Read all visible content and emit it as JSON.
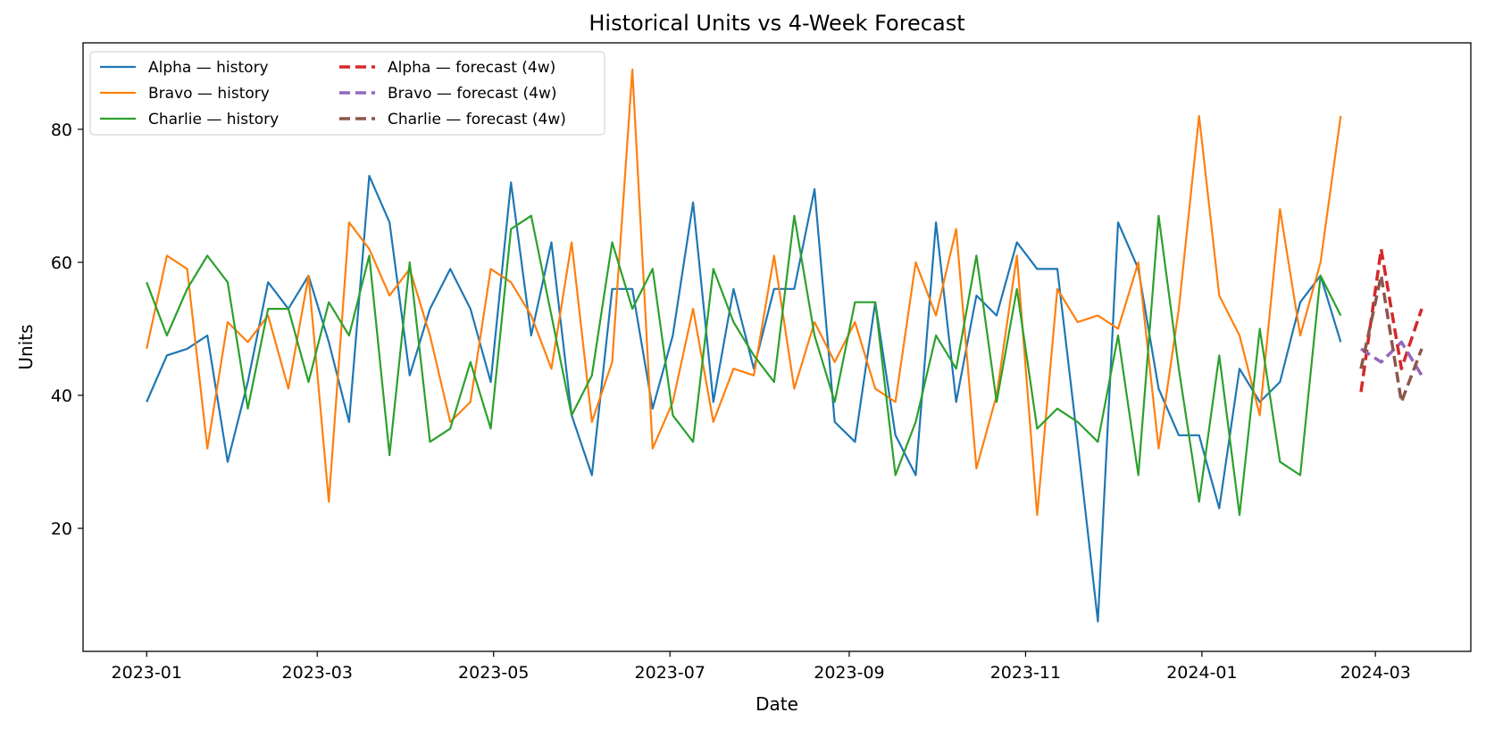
{
  "chart_data": {
    "type": "line",
    "title": "Historical Units vs 4-Week Forecast",
    "xlabel": "Date",
    "ylabel": "Units",
    "x_range": [
      "2022-12-10",
      "2024-04-03"
    ],
    "ylim": [
      1.5,
      93
    ],
    "y_ticks": [
      20,
      40,
      60,
      80
    ],
    "x_ticks": [
      {
        "date": "2023-01-01",
        "label": "2023-01"
      },
      {
        "date": "2023-03-01",
        "label": "2023-03"
      },
      {
        "date": "2023-05-01",
        "label": "2023-05"
      },
      {
        "date": "2023-07-01",
        "label": "2023-07"
      },
      {
        "date": "2023-09-01",
        "label": "2023-09"
      },
      {
        "date": "2023-11-01",
        "label": "2023-11"
      },
      {
        "date": "2024-01-01",
        "label": "2024-01"
      },
      {
        "date": "2024-03-01",
        "label": "2024-03"
      }
    ],
    "grid": false,
    "legend_placement": "top-left",
    "history_dates": [
      "2023-01-01",
      "2023-01-08",
      "2023-01-15",
      "2023-01-22",
      "2023-01-29",
      "2023-02-05",
      "2023-02-12",
      "2023-02-19",
      "2023-02-26",
      "2023-03-05",
      "2023-03-12",
      "2023-03-19",
      "2023-03-26",
      "2023-04-02",
      "2023-04-09",
      "2023-04-16",
      "2023-04-23",
      "2023-04-30",
      "2023-05-07",
      "2023-05-14",
      "2023-05-21",
      "2023-05-28",
      "2023-06-04",
      "2023-06-11",
      "2023-06-18",
      "2023-06-25",
      "2023-07-02",
      "2023-07-09",
      "2023-07-16",
      "2023-07-23",
      "2023-07-30",
      "2023-08-06",
      "2023-08-13",
      "2023-08-20",
      "2023-08-27",
      "2023-09-03",
      "2023-09-10",
      "2023-09-17",
      "2023-09-24",
      "2023-10-01",
      "2023-10-08",
      "2023-10-15",
      "2023-10-22",
      "2023-10-29",
      "2023-11-05",
      "2023-11-12",
      "2023-11-19",
      "2023-11-26",
      "2023-12-03",
      "2023-12-10",
      "2023-12-17",
      "2023-12-24",
      "2023-12-31",
      "2024-01-07",
      "2024-01-14",
      "2024-01-21",
      "2024-01-28",
      "2024-02-04",
      "2024-02-11",
      "2024-02-18"
    ],
    "forecast_dates": [
      "2024-02-25",
      "2024-03-03",
      "2024-03-10",
      "2024-03-17"
    ],
    "series": [
      {
        "name": "Alpha — history",
        "kind": "history",
        "color": "#1f77b4",
        "dashed": false,
        "values": [
          39,
          46,
          47,
          49,
          30,
          42,
          57,
          53,
          58,
          48,
          36,
          73,
          66,
          43,
          53,
          59,
          53,
          42,
          72,
          49,
          63,
          37,
          28,
          56,
          56,
          38,
          49,
          69,
          39,
          56,
          44,
          56,
          56,
          71,
          36,
          33,
          54,
          34,
          28,
          66,
          39,
          55,
          52,
          63,
          59,
          59,
          33,
          6,
          66,
          59,
          41,
          34,
          34,
          23,
          44,
          39,
          42,
          54,
          58,
          48
        ]
      },
      {
        "name": "Bravo — history",
        "kind": "history",
        "color": "#ff7f0e",
        "dashed": false,
        "values": [
          47,
          61,
          59,
          32,
          51,
          48,
          52,
          41,
          58,
          24,
          66,
          62,
          55,
          59,
          49,
          36,
          39,
          59,
          57,
          52,
          44,
          63,
          36,
          45,
          89,
          32,
          39,
          53,
          36,
          44,
          43,
          61,
          41,
          51,
          45,
          51,
          41,
          39,
          60,
          52,
          65,
          29,
          40,
          61,
          22,
          56,
          51,
          52,
          50,
          60,
          32,
          53,
          82,
          55,
          49,
          37,
          68,
          49,
          60,
          82
        ]
      },
      {
        "name": "Charlie — history",
        "kind": "history",
        "color": "#2ca02c",
        "dashed": false,
        "values": [
          57,
          49,
          56,
          61,
          57,
          38,
          53,
          53,
          42,
          54,
          49,
          61,
          31,
          60,
          33,
          35,
          45,
          35,
          65,
          67,
          52,
          37,
          43,
          63,
          53,
          59,
          37,
          33,
          59,
          51,
          46,
          42,
          67,
          49,
          39,
          54,
          54,
          28,
          36,
          49,
          44,
          61,
          39,
          56,
          35,
          38,
          36,
          33,
          49,
          28,
          67,
          44,
          24,
          46,
          22,
          50,
          30,
          28,
          58,
          52
        ]
      },
      {
        "name": "Alpha — forecast (4w)",
        "kind": "forecast",
        "color": "#d62728",
        "dashed": true,
        "values": [
          40.5,
          62,
          44,
          53
        ]
      },
      {
        "name": "Bravo — forecast (4w)",
        "kind": "forecast",
        "color": "#9467bd",
        "dashed": true,
        "values": [
          47,
          45,
          48,
          43
        ]
      },
      {
        "name": "Charlie — forecast (4w)",
        "kind": "forecast",
        "color": "#8c564b",
        "dashed": true,
        "values": [
          44,
          58,
          39,
          47
        ]
      }
    ]
  }
}
